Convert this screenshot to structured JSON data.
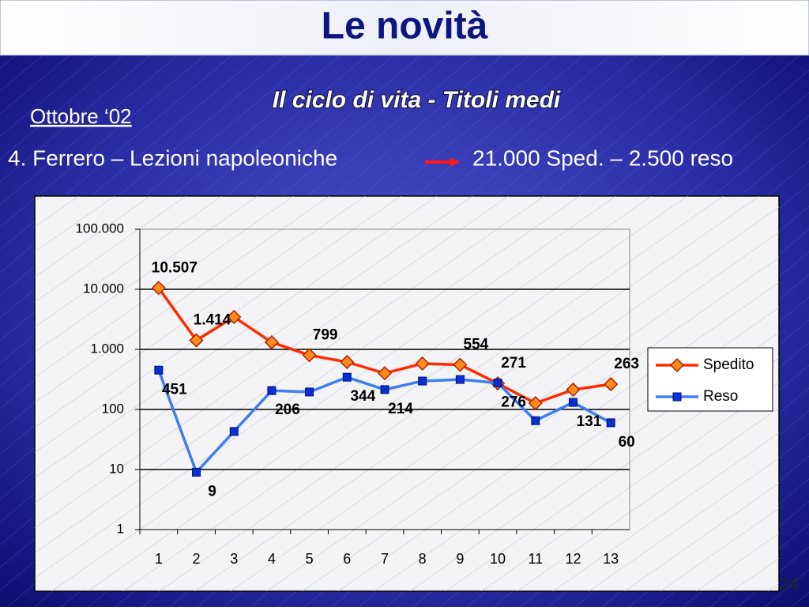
{
  "slide": {
    "title": "Le novità",
    "subtitle": "Il ciclo di vita - Titoli medi",
    "date": "Ottobre ‘02",
    "item": "4. Ferrero – Lezioni napoleoniche",
    "result": "21.000 Sped. – 2.500 reso",
    "page": "24"
  },
  "chart_data": {
    "type": "line",
    "log_scale": true,
    "grid": true,
    "legend": "right",
    "categories": [
      "1",
      "2",
      "3",
      "4",
      "5",
      "6",
      "7",
      "8",
      "9",
      "10",
      "11",
      "12",
      "13"
    ],
    "ylim": [
      1,
      100000
    ],
    "yticks": [
      1,
      10,
      100,
      {
        "value": 1000,
        "label": "1.000"
      },
      {
        "value": 10000,
        "label": "10.000"
      },
      {
        "value": 100000,
        "label": "100.000"
      }
    ],
    "series": [
      {
        "name": "Spedito",
        "color": "#ff2a00",
        "marker": "diamond",
        "marker_color": "#ff8c1a",
        "values": [
          10507,
          1414,
          3460,
          1310,
          799,
          615,
          400,
          580,
          554,
          271,
          127,
          213,
          263
        ],
        "value_labels": [
          "10.507",
          "1.414",
          null,
          null,
          "799",
          null,
          null,
          null,
          "554",
          "271",
          null,
          null,
          "263"
        ]
      },
      {
        "name": "Reso",
        "color": "#3d7ef0",
        "marker": "square",
        "marker_color": "#0a2fd0",
        "values": [
          451,
          9,
          43,
          206,
          195,
          344,
          214,
          297,
          315,
          276,
          65,
          131,
          60
        ],
        "value_labels": [
          "451",
          "9",
          null,
          "206",
          null,
          "344",
          "214",
          null,
          null,
          "276",
          null,
          "131",
          "60"
        ]
      }
    ]
  }
}
